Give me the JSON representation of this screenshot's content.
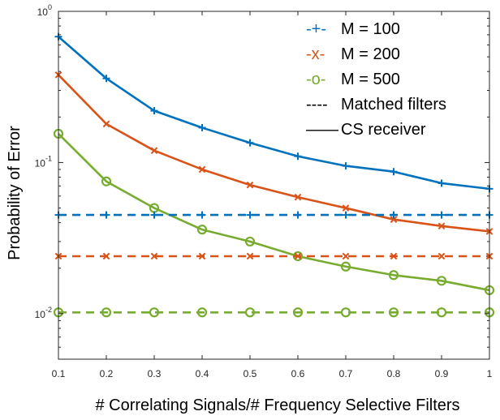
{
  "chart_data": {
    "type": "line",
    "xlabel": "# Correlating Signals/# Frequency Selective Filters",
    "ylabel": "Probability of Error",
    "x": [
      0.1,
      0.2,
      0.3,
      0.4,
      0.5,
      0.6,
      0.7,
      0.8,
      0.9,
      1.0
    ],
    "xlim": [
      0.1,
      1.0
    ],
    "ylim": [
      0.005,
      1
    ],
    "yscale": "log",
    "grid": false,
    "x_tick_labels": [
      "0.1",
      "0.2",
      "0.3",
      "0.4",
      "0.5",
      "0.6",
      "0.7",
      "0.8",
      "0.9",
      "1"
    ],
    "y_tick_labels": [
      {
        "base": "10",
        "exp": "0",
        "value": 1
      },
      {
        "base": "10",
        "exp": "-1",
        "value": 0.1
      },
      {
        "base": "10",
        "exp": "-2",
        "value": 0.01
      }
    ],
    "legend": {
      "placement": "top-right",
      "entries": [
        {
          "symbol": "-+-",
          "label": "M = 100",
          "color": "#0072BD"
        },
        {
          "symbol": "-x-",
          "label": "M = 200",
          "color": "#D95319"
        },
        {
          "symbol": "-o-",
          "label": "M = 500",
          "color": "#77AC30"
        },
        {
          "symbol": "----",
          "label": "Matched filters",
          "color": "#000000"
        },
        {
          "symbol": "——",
          "label": "CS receiver",
          "color": "#000000"
        }
      ]
    },
    "series": [
      {
        "receiver": "CS receiver",
        "M": "M = 100",
        "marker": "plus",
        "style": "solid",
        "color": "#0072BD",
        "values": [
          0.68,
          0.36,
          0.22,
          0.17,
          0.135,
          0.11,
          0.095,
          0.087,
          0.073,
          0.067
        ]
      },
      {
        "receiver": "CS receiver",
        "M": "M = 200",
        "marker": "x",
        "style": "solid",
        "color": "#D95319",
        "values": [
          0.38,
          0.18,
          0.12,
          0.09,
          0.071,
          0.059,
          0.05,
          0.042,
          0.038,
          0.035
        ]
      },
      {
        "receiver": "CS receiver",
        "M": "M = 500",
        "marker": "circle",
        "style": "solid",
        "color": "#77AC30",
        "values": [
          0.155,
          0.075,
          0.05,
          0.036,
          0.03,
          0.024,
          0.0205,
          0.018,
          0.0165,
          0.0143
        ]
      },
      {
        "receiver": "Matched filters",
        "M": "M = 100",
        "marker": "plus",
        "style": "dashed",
        "color": "#0072BD",
        "values": [
          0.045,
          0.045,
          0.045,
          0.045,
          0.045,
          0.045,
          0.045,
          0.045,
          0.045,
          0.045
        ]
      },
      {
        "receiver": "Matched filters",
        "M": "M = 200",
        "marker": "x",
        "style": "dashed",
        "color": "#D95319",
        "values": [
          0.024,
          0.024,
          0.024,
          0.024,
          0.024,
          0.024,
          0.024,
          0.024,
          0.024,
          0.024
        ]
      },
      {
        "receiver": "Matched filters",
        "M": "M = 500",
        "marker": "circle",
        "style": "dashed",
        "color": "#77AC30",
        "values": [
          0.0102,
          0.0102,
          0.0102,
          0.0102,
          0.0102,
          0.0102,
          0.0102,
          0.0102,
          0.0102,
          0.0102
        ]
      }
    ]
  }
}
